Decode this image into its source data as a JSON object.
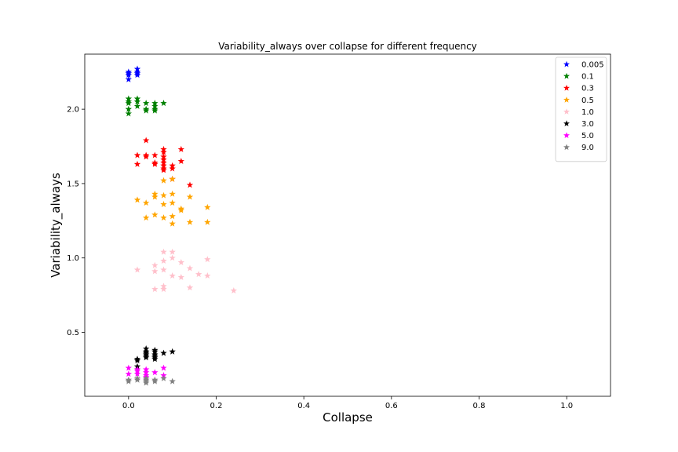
{
  "chart_data": {
    "type": "scatter",
    "title": "Variability_always over collapse for different frequency",
    "xlabel": "Collapse",
    "ylabel": "Variability_always",
    "xlim": [
      -0.1,
      1.1
    ],
    "ylim": [
      0.07,
      2.37
    ],
    "xticks": [
      0.0,
      0.2,
      0.4,
      0.6,
      0.8,
      1.0
    ],
    "xtick_labels": [
      "0.0",
      "0.2",
      "0.4",
      "0.6",
      "0.8",
      "1.0"
    ],
    "yticks": [
      0.5,
      1.0,
      1.5,
      2.0
    ],
    "ytick_labels": [
      "0.5",
      "1.0",
      "1.5",
      "2.0"
    ],
    "grid": false,
    "legend_position": "top-right",
    "marker": "star",
    "series": [
      {
        "name": "0.005",
        "color": "#0000ff",
        "points": [
          [
            0,
            2.25
          ],
          [
            0,
            2.24
          ],
          [
            0,
            2.23
          ],
          [
            0,
            2.2
          ],
          [
            0.02,
            2.27
          ],
          [
            0.02,
            2.25
          ],
          [
            0.02,
            2.24
          ],
          [
            0.02,
            2.23
          ]
        ]
      },
      {
        "name": "0.1",
        "color": "#008000",
        "points": [
          [
            0,
            2.07
          ],
          [
            0,
            2.05
          ],
          [
            0,
            2.04
          ],
          [
            0,
            2.0
          ],
          [
            0,
            1.97
          ],
          [
            0.02,
            2.07
          ],
          [
            0.02,
            2.05
          ],
          [
            0.02,
            2.02
          ],
          [
            0.04,
            2.04
          ],
          [
            0.04,
            2.0
          ],
          [
            0.04,
            1.99
          ],
          [
            0.06,
            2.04
          ],
          [
            0.06,
            2.02
          ],
          [
            0.06,
            2.0
          ],
          [
            0.06,
            1.99
          ],
          [
            0.08,
            2.04
          ]
        ]
      },
      {
        "name": "0.3",
        "color": "#ff0000",
        "points": [
          [
            0.02,
            1.69
          ],
          [
            0.02,
            1.63
          ],
          [
            0.04,
            1.79
          ],
          [
            0.04,
            1.69
          ],
          [
            0.04,
            1.68
          ],
          [
            0.06,
            1.69
          ],
          [
            0.06,
            1.64
          ],
          [
            0.06,
            1.63
          ],
          [
            0.08,
            1.73
          ],
          [
            0.08,
            1.71
          ],
          [
            0.08,
            1.68
          ],
          [
            0.08,
            1.66
          ],
          [
            0.08,
            1.64
          ],
          [
            0.08,
            1.62
          ],
          [
            0.08,
            1.6
          ],
          [
            0.08,
            1.59
          ],
          [
            0.1,
            1.62
          ],
          [
            0.1,
            1.6
          ],
          [
            0.1,
            1.53
          ],
          [
            0.12,
            1.73
          ],
          [
            0.12,
            1.65
          ],
          [
            0.14,
            1.49
          ]
        ]
      },
      {
        "name": "0.5",
        "color": "#ffa500",
        "points": [
          [
            0.02,
            1.39
          ],
          [
            0.04,
            1.37
          ],
          [
            0.04,
            1.27
          ],
          [
            0.06,
            1.43
          ],
          [
            0.06,
            1.41
          ],
          [
            0.06,
            1.29
          ],
          [
            0.08,
            1.52
          ],
          [
            0.08,
            1.42
          ],
          [
            0.08,
            1.36
          ],
          [
            0.08,
            1.27
          ],
          [
            0.1,
            1.53
          ],
          [
            0.1,
            1.43
          ],
          [
            0.1,
            1.37
          ],
          [
            0.1,
            1.28
          ],
          [
            0.1,
            1.23
          ],
          [
            0.12,
            1.33
          ],
          [
            0.12,
            1.32
          ],
          [
            0.14,
            1.41
          ],
          [
            0.14,
            1.24
          ],
          [
            0.18,
            1.34
          ],
          [
            0.18,
            1.24
          ]
        ]
      },
      {
        "name": "1.0",
        "color": "#ffc0cb",
        "points": [
          [
            0.02,
            0.92
          ],
          [
            0.06,
            0.95
          ],
          [
            0.06,
            0.91
          ],
          [
            0.06,
            0.79
          ],
          [
            0.08,
            1.04
          ],
          [
            0.08,
            0.98
          ],
          [
            0.08,
            0.92
          ],
          [
            0.08,
            0.81
          ],
          [
            0.08,
            0.79
          ],
          [
            0.1,
            1.04
          ],
          [
            0.1,
            1.0
          ],
          [
            0.1,
            0.88
          ],
          [
            0.12,
            0.97
          ],
          [
            0.12,
            0.87
          ],
          [
            0.14,
            0.93
          ],
          [
            0.14,
            0.8
          ],
          [
            0.16,
            0.89
          ],
          [
            0.18,
            0.99
          ],
          [
            0.18,
            0.88
          ],
          [
            0.24,
            0.78
          ]
        ]
      },
      {
        "name": "3.0",
        "color": "#000000",
        "points": [
          [
            0.02,
            0.32
          ],
          [
            0.02,
            0.31
          ],
          [
            0.02,
            0.27
          ],
          [
            0.04,
            0.39
          ],
          [
            0.04,
            0.37
          ],
          [
            0.04,
            0.36
          ],
          [
            0.04,
            0.35
          ],
          [
            0.04,
            0.34
          ],
          [
            0.04,
            0.33
          ],
          [
            0.06,
            0.38
          ],
          [
            0.06,
            0.37
          ],
          [
            0.06,
            0.35
          ],
          [
            0.06,
            0.34
          ],
          [
            0.06,
            0.33
          ],
          [
            0.06,
            0.32
          ],
          [
            0.08,
            0.36
          ],
          [
            0.1,
            0.37
          ]
        ]
      },
      {
        "name": "5.0",
        "color": "#ff00ff",
        "points": [
          [
            0,
            0.26
          ],
          [
            0,
            0.22
          ],
          [
            0.02,
            0.25
          ],
          [
            0.02,
            0.24
          ],
          [
            0.02,
            0.22
          ],
          [
            0.04,
            0.25
          ],
          [
            0.04,
            0.23
          ],
          [
            0.04,
            0.21
          ],
          [
            0.04,
            0.2
          ],
          [
            0.06,
            0.23
          ],
          [
            0.08,
            0.26
          ],
          [
            0.08,
            0.21
          ]
        ]
      },
      {
        "name": "9.0",
        "color": "#808080",
        "points": [
          [
            0,
            0.18
          ],
          [
            0,
            0.17
          ],
          [
            0.02,
            0.19
          ],
          [
            0.02,
            0.18
          ],
          [
            0.04,
            0.19
          ],
          [
            0.04,
            0.18
          ],
          [
            0.04,
            0.17
          ],
          [
            0.04,
            0.16
          ],
          [
            0.06,
            0.18
          ],
          [
            0.06,
            0.17
          ],
          [
            0.08,
            0.19
          ],
          [
            0.1,
            0.17
          ]
        ]
      }
    ]
  }
}
